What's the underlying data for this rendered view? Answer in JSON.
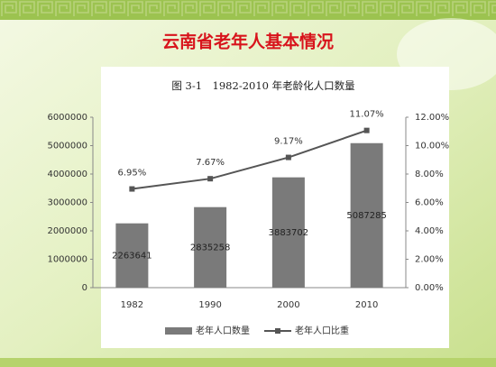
{
  "slide_title": "云南省老年人基本情况",
  "chart_data": {
    "type": "bar-line",
    "title": "图 3-1　1982-2010 年老龄化人口数量",
    "categories": [
      "1982",
      "1990",
      "2000",
      "2010"
    ],
    "series": [
      {
        "name": "老年人口数量",
        "type": "bar",
        "color": "#7a7a7a",
        "values": [
          2263641,
          2835258,
          3883702,
          5087285
        ]
      },
      {
        "name": "老年人口比重",
        "type": "line",
        "axis": "y2",
        "color": "#555555",
        "values": [
          6.95,
          7.67,
          9.17,
          11.07
        ],
        "value_labels": [
          "6.95%",
          "7.67%",
          "9.17%",
          "11.07%"
        ]
      }
    ],
    "ylim": [
      0,
      6000000
    ],
    "yticks": [
      0,
      1000000,
      2000000,
      3000000,
      4000000,
      5000000,
      6000000
    ],
    "y2lim": [
      0,
      12
    ],
    "y2ticks": [
      {
        "value": 0,
        "label": "0.00%"
      },
      {
        "value": 2,
        "label": "2.00%"
      },
      {
        "value": 4,
        "label": "4.00%"
      },
      {
        "value": 6,
        "label": "6.00%"
      },
      {
        "value": 8,
        "label": "8.00%"
      },
      {
        "value": 10,
        "label": "10.00%"
      },
      {
        "value": 12,
        "label": "12.00%"
      }
    ],
    "legend": "bottom"
  }
}
